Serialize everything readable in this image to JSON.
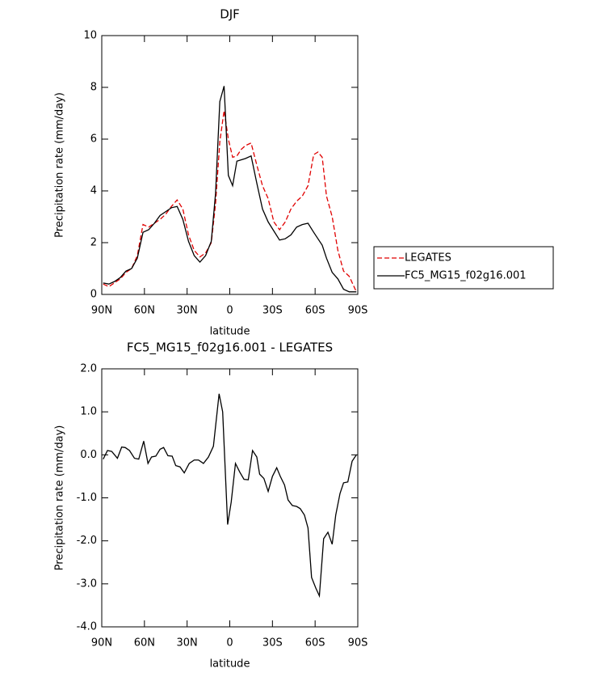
{
  "chart_data": [
    {
      "type": "line",
      "title": "DJF",
      "xlabel": "latitude",
      "ylabel": "Precipitation rate (mm/day)",
      "x": [
        89,
        85,
        81,
        77,
        73,
        69,
        65,
        61,
        57,
        53,
        49,
        45,
        41,
        37,
        33,
        29,
        25,
        21,
        17,
        13,
        10,
        7,
        4,
        1,
        -2,
        -5,
        -8,
        -11,
        -15,
        -19,
        -23,
        -27,
        -31,
        -35,
        -39,
        -43,
        -47,
        -51,
        -55,
        -59,
        -62,
        -65,
        -68,
        -72,
        -76,
        -80,
        -84,
        -89
      ],
      "series": [
        {
          "name": "LEGATES",
          "color": "#e00000",
          "dashed": true,
          "values": [
            0.4,
            0.3,
            0.45,
            0.6,
            0.85,
            1.0,
            1.5,
            2.7,
            2.6,
            2.75,
            2.9,
            3.1,
            3.4,
            3.65,
            3.3,
            2.3,
            1.7,
            1.45,
            1.6,
            2.0,
            3.5,
            5.9,
            7.1,
            6.0,
            5.3,
            5.35,
            5.6,
            5.75,
            5.85,
            5.0,
            4.2,
            3.7,
            2.8,
            2.5,
            2.8,
            3.3,
            3.6,
            3.8,
            4.2,
            5.4,
            5.5,
            5.3,
            3.8,
            3.0,
            1.7,
            0.9,
            0.7,
            0.1
          ]
        },
        {
          "name": "FC5_MG15_f02g16.001",
          "color": "#000000",
          "dashed": false,
          "values": [
            0.44,
            0.4,
            0.5,
            0.65,
            0.9,
            1.0,
            1.4,
            2.4,
            2.5,
            2.75,
            3.05,
            3.2,
            3.35,
            3.4,
            2.9,
            2.05,
            1.5,
            1.25,
            1.5,
            2.05,
            3.9,
            7.45,
            8.05,
            4.6,
            4.2,
            5.15,
            5.2,
            5.25,
            5.35,
            4.3,
            3.3,
            2.8,
            2.45,
            2.1,
            2.15,
            2.3,
            2.6,
            2.7,
            2.75,
            2.4,
            2.15,
            1.9,
            1.4,
            0.85,
            0.6,
            0.2,
            0.1,
            0.1
          ]
        }
      ],
      "xlim": [
        90,
        -90
      ],
      "xticks": [
        {
          "value": 90,
          "label": "90N"
        },
        {
          "value": 60,
          "label": "60N"
        },
        {
          "value": 30,
          "label": "30N"
        },
        0,
        {
          "value": -30,
          "label": "30S"
        },
        {
          "value": -60,
          "label": "60S"
        },
        {
          "value": -90,
          "label": "90S"
        }
      ],
      "ylim": [
        0,
        10
      ],
      "yticks": [
        0,
        2,
        4,
        6,
        8,
        10
      ],
      "legend": "right"
    },
    {
      "type": "line",
      "title": "FC5_MG15_f02g16.001 - LEGATES",
      "xlabel": "latitude",
      "ylabel": "Precipitation rate (mm/day)",
      "x": [
        89,
        86,
        83,
        79,
        76,
        73.5,
        70.5,
        67,
        64,
        60.5,
        57.5,
        55,
        52,
        49,
        46.5,
        43.5,
        40.5,
        38,
        35,
        32,
        28.5,
        25,
        22,
        18.5,
        15,
        11.5,
        7.5,
        5,
        1.5,
        -1,
        -4,
        -7,
        -10,
        -13,
        -16,
        -19,
        -21,
        -24,
        -27,
        -30,
        -33,
        -35.5,
        -38.5,
        -41,
        -44,
        -47,
        -49.5,
        -52.5,
        -55,
        -57.5,
        -60.5,
        -63,
        -66,
        -69,
        -72,
        -74.5,
        -77.5,
        -80,
        -83,
        -86,
        -89
      ],
      "color": "#000000",
      "values": [
        -0.1,
        0.1,
        0.08,
        -0.08,
        0.18,
        0.17,
        0.1,
        -0.08,
        -0.1,
        0.32,
        -0.2,
        -0.05,
        -0.03,
        0.13,
        0.17,
        -0.02,
        -0.03,
        -0.25,
        -0.28,
        -0.42,
        -0.2,
        -0.12,
        -0.12,
        -0.2,
        -0.05,
        0.2,
        1.42,
        1.0,
        -1.62,
        -1.1,
        -0.2,
        -0.4,
        -0.57,
        -0.58,
        0.1,
        -0.05,
        -0.45,
        -0.55,
        -0.85,
        -0.5,
        -0.3,
        -0.5,
        -0.7,
        -1.05,
        -1.18,
        -1.2,
        -1.25,
        -1.4,
        -1.7,
        -2.85,
        -3.1,
        -3.28,
        -1.95,
        -1.8,
        -2.08,
        -1.4,
        -0.9,
        -0.65,
        -0.63,
        -0.15,
        0.0
      ],
      "xlim": [
        90,
        -90
      ],
      "xticks": [
        {
          "value": 90,
          "label": "90N"
        },
        {
          "value": 60,
          "label": "60N"
        },
        {
          "value": 30,
          "label": "30N"
        },
        0,
        {
          "value": -30,
          "label": "30S"
        },
        {
          "value": -60,
          "label": "60S"
        },
        {
          "value": -90,
          "label": "90S"
        }
      ],
      "ylim": [
        -4,
        2
      ],
      "yticks": [
        {
          "value": 2,
          "label": "2.0"
        },
        {
          "value": 1,
          "label": "1.0"
        },
        {
          "value": 0,
          "label": "0.0"
        },
        {
          "value": -1,
          "label": "-1.0"
        },
        {
          "value": -2,
          "label": "-2.0"
        },
        {
          "value": -3,
          "label": "-3.0"
        },
        {
          "value": -4,
          "label": "-4.0"
        }
      ]
    }
  ]
}
